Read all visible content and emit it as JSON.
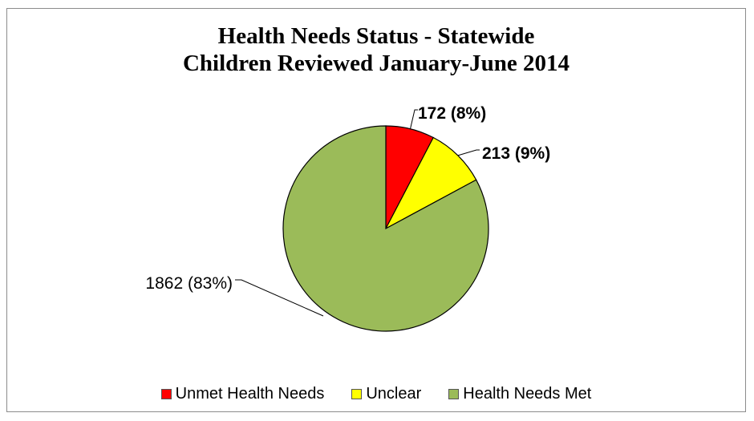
{
  "chart_data": {
    "type": "pie",
    "title_lines": [
      "Health Needs Status - Statewide",
      "Children Reviewed January-June 2014"
    ],
    "series": [
      {
        "name": "Unmet Health Needs",
        "value": 172,
        "percent": 8,
        "label": "172 (8%)",
        "color": "#ff0000",
        "label_bold": true
      },
      {
        "name": "Unclear",
        "value": 213,
        "percent": 9,
        "label": "213 (9%)",
        "color": "#ffff00",
        "label_bold": true
      },
      {
        "name": "Health Needs Met",
        "value": 1862,
        "percent": 83,
        "label": "1862 (83%)",
        "color": "#9bbb59",
        "label_bold": false
      }
    ],
    "legend_position": "bottom"
  }
}
